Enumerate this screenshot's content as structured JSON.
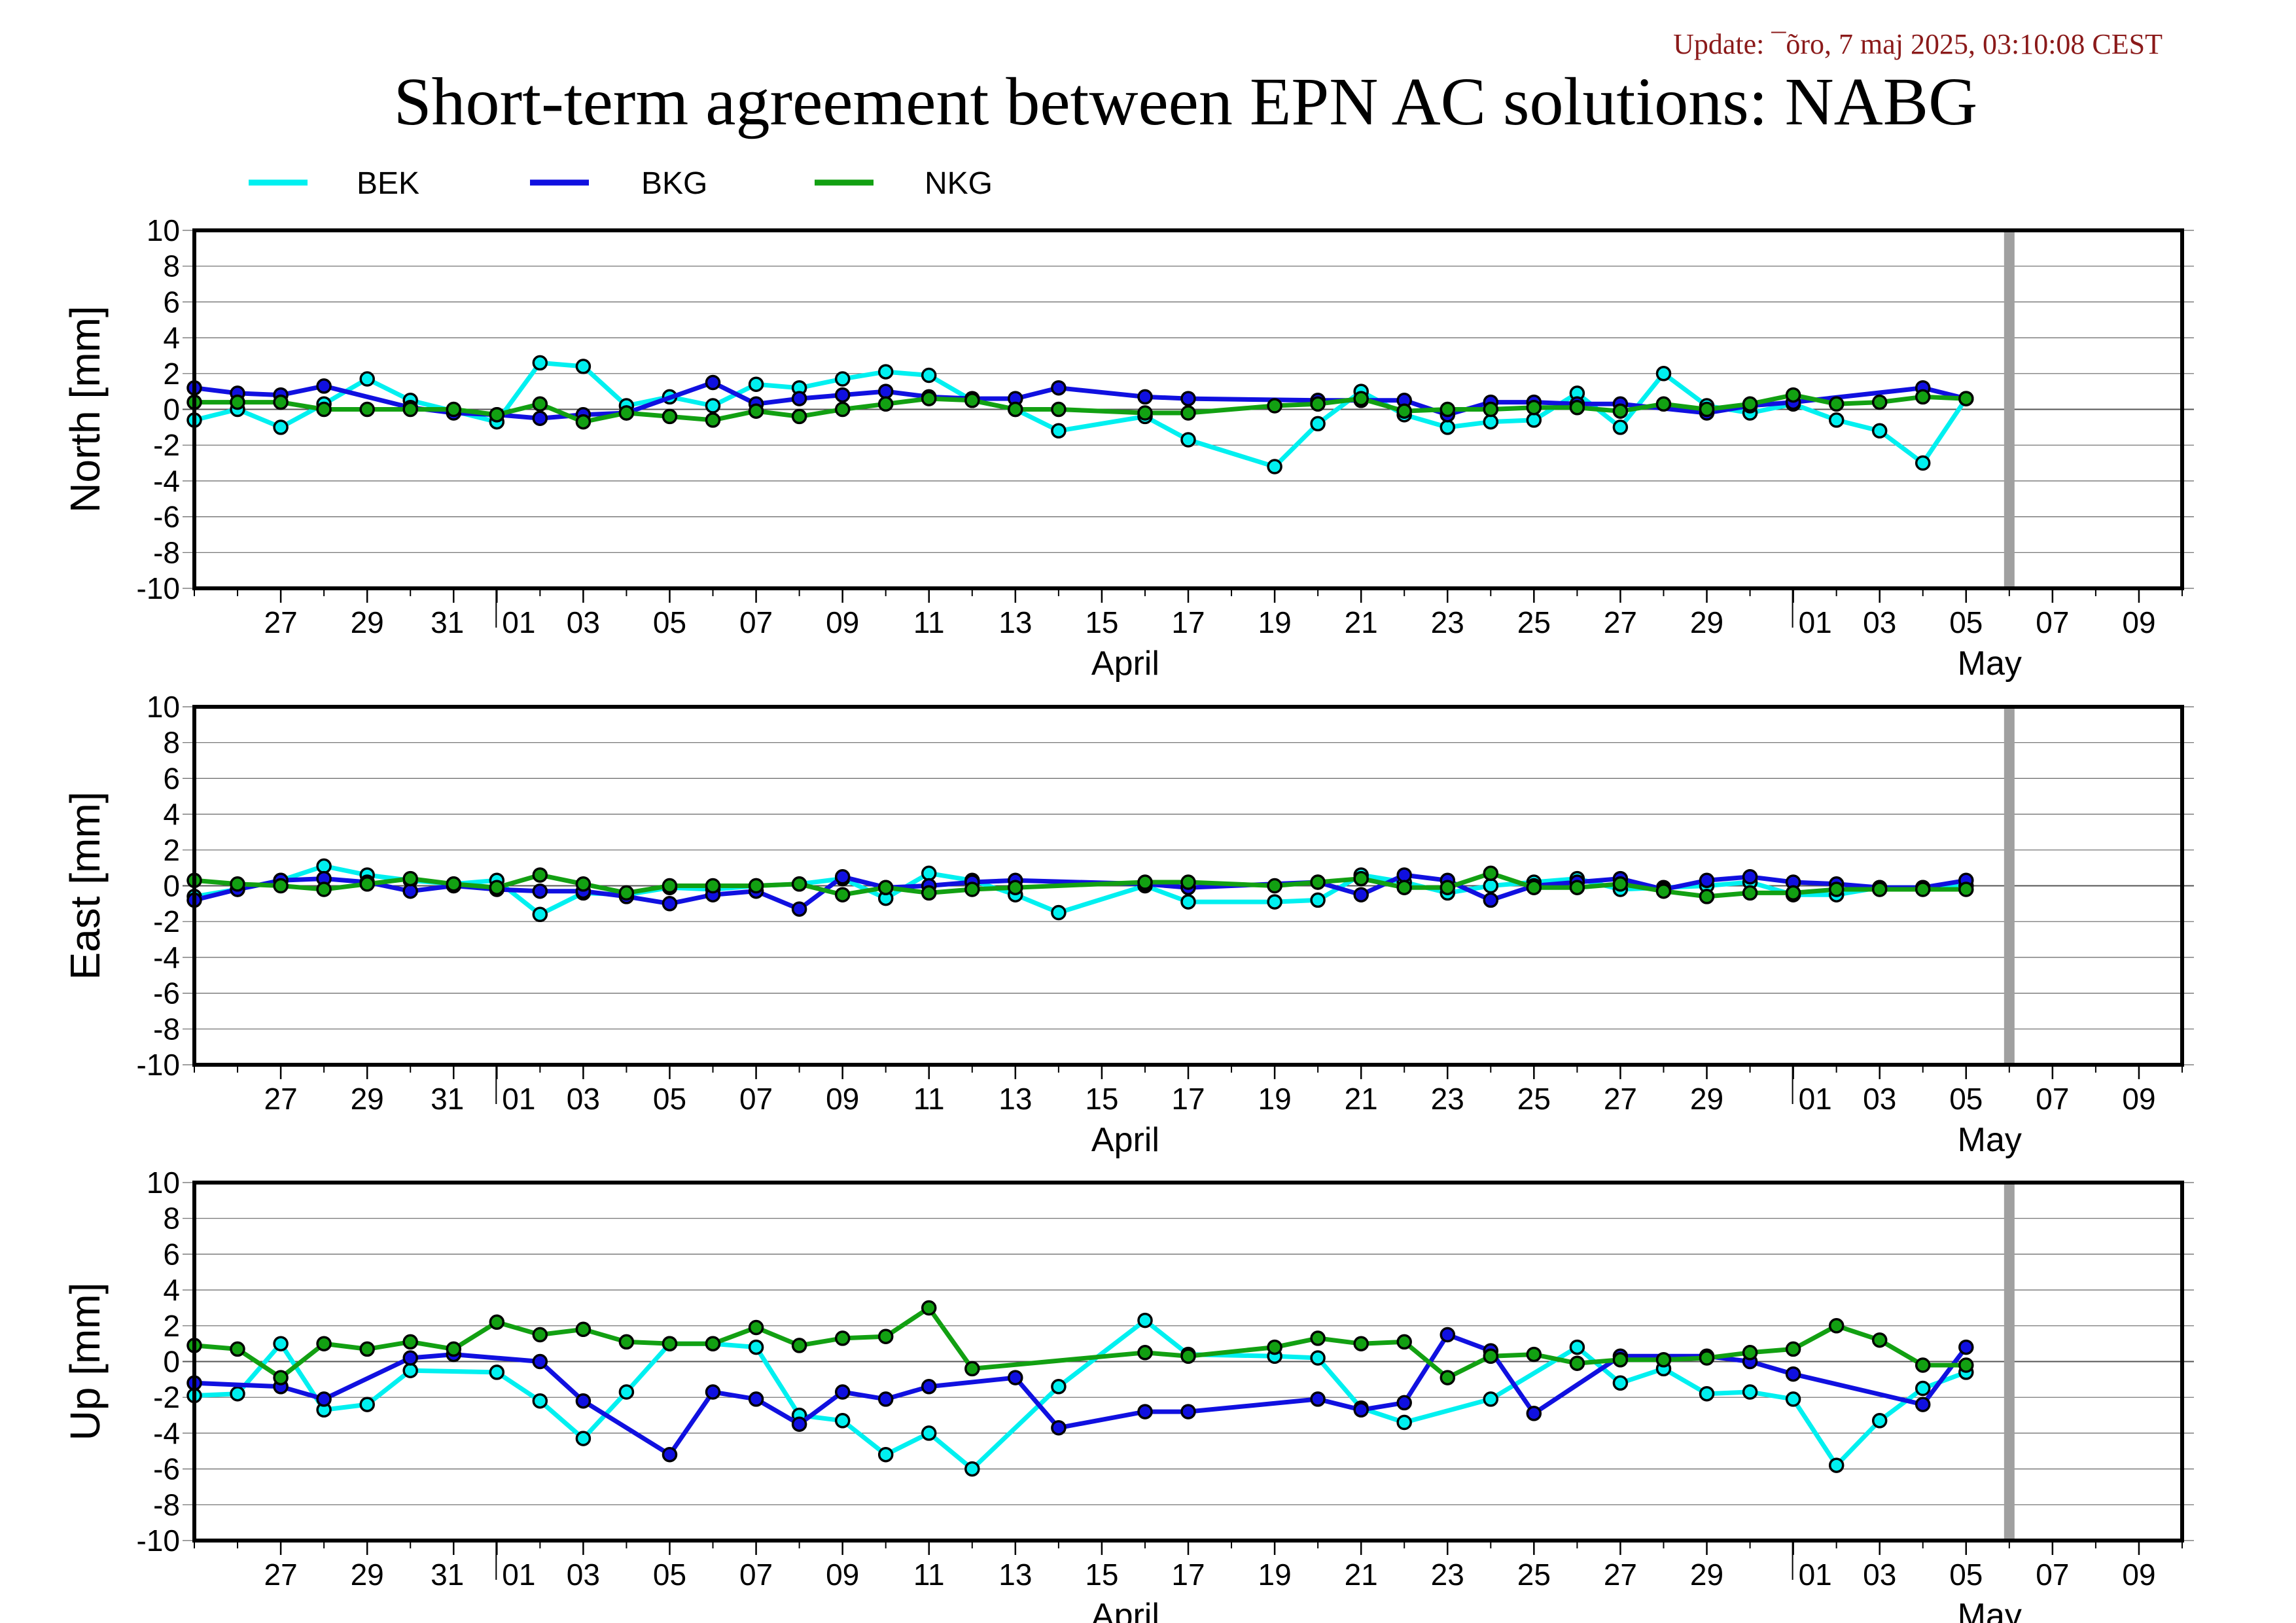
{
  "update_text": "Update: ¯õro, 7 maj 2025, 03:10:08 CEST",
  "title": "Short-term agreement between EPN AC solutions: NABG",
  "colors": {
    "BEK": "#00f0f0",
    "BKG": "#1010e0",
    "NKG": "#12a012",
    "grey_bar": "#a0a0a0"
  },
  "chart_data": [
    {
      "type": "line",
      "ylabel": "North [mm]",
      "ylim": [
        -10,
        10
      ],
      "yticks": [
        -10,
        -8,
        -6,
        -4,
        -2,
        0,
        2,
        4,
        6,
        8,
        10
      ],
      "xlim": [
        "2025-03-25",
        "2025-05-10"
      ],
      "xticks": [
        "27",
        "29",
        "31",
        "01",
        "03",
        "05",
        "07",
        "09",
        "11",
        "13",
        "15",
        "17",
        "19",
        "21",
        "23",
        "25",
        "27",
        "29",
        "01",
        "03",
        "05",
        "07",
        "09"
      ],
      "months": [
        "April",
        "May"
      ],
      "series": [
        {
          "name": "BEK",
          "x": [
            "2025-03-25",
            "2025-03-26",
            "2025-03-27",
            "2025-03-28",
            "2025-03-29",
            "2025-03-30",
            "2025-03-31",
            "2025-04-01",
            "2025-04-02",
            "2025-04-03",
            "2025-04-04",
            "2025-04-05",
            "2025-04-06",
            "2025-04-07",
            "2025-04-08",
            "2025-04-09",
            "2025-04-10",
            "2025-04-11",
            "2025-04-12",
            "2025-04-13",
            "2025-04-14",
            "2025-04-16",
            "2025-04-17",
            "2025-04-19",
            "2025-04-20",
            "2025-04-21",
            "2025-04-22",
            "2025-04-23",
            "2025-04-24",
            "2025-04-25",
            "2025-04-26",
            "2025-04-27",
            "2025-04-28",
            "2025-04-29",
            "2025-04-30",
            "2025-05-01",
            "2025-05-02",
            "2025-05-03",
            "2025-05-04",
            "2025-05-05"
          ],
          "y": [
            -0.6,
            0.0,
            -1.0,
            0.3,
            1.7,
            0.5,
            -0.1,
            -0.7,
            2.6,
            2.4,
            0.2,
            0.7,
            0.2,
            1.4,
            1.2,
            1.7,
            2.1,
            1.9,
            0.5,
            0.0,
            -1.2,
            -0.4,
            -1.7,
            -3.2,
            -0.8,
            1.0,
            -0.3,
            -1.0,
            -0.7,
            -0.6,
            0.9,
            -1.0,
            2.0,
            0.2,
            -0.2,
            0.3,
            -0.6,
            -1.2,
            -3.0,
            0.6
          ]
        },
        {
          "name": "BKG",
          "x": [
            "2025-03-25",
            "2025-03-26",
            "2025-03-27",
            "2025-03-28",
            "2025-03-30",
            "2025-03-31",
            "2025-04-01",
            "2025-04-02",
            "2025-04-03",
            "2025-04-04",
            "2025-04-06",
            "2025-04-07",
            "2025-04-08",
            "2025-04-09",
            "2025-04-10",
            "2025-04-11",
            "2025-04-12",
            "2025-04-13",
            "2025-04-14",
            "2025-04-16",
            "2025-04-17",
            "2025-04-20",
            "2025-04-21",
            "2025-04-22",
            "2025-04-23",
            "2025-04-24",
            "2025-04-25",
            "2025-04-26",
            "2025-04-27",
            "2025-04-29",
            "2025-04-30",
            "2025-05-01",
            "2025-05-04",
            "2025-05-05"
          ],
          "y": [
            1.2,
            0.9,
            0.8,
            1.3,
            0.1,
            -0.2,
            -0.3,
            -0.5,
            -0.3,
            -0.2,
            1.5,
            0.3,
            0.6,
            0.8,
            1.0,
            0.7,
            0.6,
            0.6,
            1.2,
            0.7,
            0.6,
            0.5,
            0.5,
            0.5,
            -0.3,
            0.4,
            0.4,
            0.3,
            0.3,
            -0.2,
            0.2,
            0.4,
            1.2,
            0.6
          ]
        },
        {
          "name": "NKG",
          "x": [
            "2025-03-25",
            "2025-03-26",
            "2025-03-27",
            "2025-03-28",
            "2025-03-29",
            "2025-03-30",
            "2025-03-31",
            "2025-04-01",
            "2025-04-02",
            "2025-04-03",
            "2025-04-04",
            "2025-04-05",
            "2025-04-06",
            "2025-04-07",
            "2025-04-08",
            "2025-04-09",
            "2025-04-10",
            "2025-04-11",
            "2025-04-12",
            "2025-04-13",
            "2025-04-14",
            "2025-04-16",
            "2025-04-17",
            "2025-04-19",
            "2025-04-20",
            "2025-04-21",
            "2025-04-22",
            "2025-04-23",
            "2025-04-24",
            "2025-04-25",
            "2025-04-26",
            "2025-04-27",
            "2025-04-28",
            "2025-04-29",
            "2025-04-30",
            "2025-05-01",
            "2025-05-02",
            "2025-05-03",
            "2025-05-04",
            "2025-05-05"
          ],
          "y": [
            0.4,
            0.4,
            0.4,
            0.0,
            0.0,
            0.0,
            0.0,
            -0.3,
            0.3,
            -0.7,
            -0.2,
            -0.4,
            -0.6,
            -0.1,
            -0.4,
            0.0,
            0.3,
            0.6,
            0.5,
            0.0,
            0.0,
            -0.2,
            -0.2,
            0.2,
            0.3,
            0.6,
            -0.1,
            0.0,
            0.0,
            0.1,
            0.1,
            -0.1,
            0.3,
            0.0,
            0.3,
            0.8,
            0.3,
            0.4,
            0.7,
            0.6
          ]
        }
      ]
    },
    {
      "type": "line",
      "ylabel": "East [mm]",
      "ylim": [
        -10,
        10
      ],
      "yticks": [
        -10,
        -8,
        -6,
        -4,
        -2,
        0,
        2,
        4,
        6,
        8,
        10
      ],
      "xlim": [
        "2025-03-25",
        "2025-05-10"
      ],
      "xticks": [
        "27",
        "29",
        "31",
        "01",
        "03",
        "05",
        "07",
        "09",
        "11",
        "13",
        "15",
        "17",
        "19",
        "21",
        "23",
        "25",
        "27",
        "29",
        "01",
        "03",
        "05",
        "07",
        "09"
      ],
      "months": [
        "April",
        "May"
      ],
      "series": [
        {
          "name": "BEK",
          "x": [
            "2025-03-25",
            "2025-03-26",
            "2025-03-27",
            "2025-03-28",
            "2025-03-29",
            "2025-03-30",
            "2025-03-31",
            "2025-04-01",
            "2025-04-02",
            "2025-04-03",
            "2025-04-04",
            "2025-04-05",
            "2025-04-06",
            "2025-04-07",
            "2025-04-08",
            "2025-04-09",
            "2025-04-10",
            "2025-04-11",
            "2025-04-12",
            "2025-04-13",
            "2025-04-14",
            "2025-04-16",
            "2025-04-17",
            "2025-04-19",
            "2025-04-20",
            "2025-04-21",
            "2025-04-22",
            "2025-04-23",
            "2025-04-24",
            "2025-04-25",
            "2025-04-26",
            "2025-04-27",
            "2025-04-28",
            "2025-04-29",
            "2025-04-30",
            "2025-05-01",
            "2025-05-02",
            "2025-05-03",
            "2025-05-04",
            "2025-05-05"
          ],
          "y": [
            -0.6,
            -0.2,
            0.3,
            1.1,
            0.6,
            0.3,
            0.1,
            0.3,
            -1.6,
            -0.4,
            -0.5,
            -0.1,
            -0.2,
            0.0,
            0.1,
            0.4,
            -0.7,
            0.7,
            0.3,
            -0.5,
            -1.5,
            0.0,
            -0.9,
            -0.9,
            -0.8,
            0.6,
            0.2,
            -0.4,
            0.0,
            0.2,
            0.4,
            -0.2,
            -0.1,
            0.0,
            0.2,
            -0.5,
            -0.5,
            -0.1,
            -0.1,
            0.0
          ]
        },
        {
          "name": "BKG",
          "x": [
            "2025-03-25",
            "2025-03-26",
            "2025-03-27",
            "2025-03-28",
            "2025-03-29",
            "2025-03-30",
            "2025-03-31",
            "2025-04-01",
            "2025-04-02",
            "2025-04-03",
            "2025-04-04",
            "2025-04-05",
            "2025-04-06",
            "2025-04-07",
            "2025-04-08",
            "2025-04-09",
            "2025-04-10",
            "2025-04-11",
            "2025-04-12",
            "2025-04-13",
            "2025-04-16",
            "2025-04-17",
            "2025-04-20",
            "2025-04-21",
            "2025-04-22",
            "2025-04-23",
            "2025-04-24",
            "2025-04-25",
            "2025-04-26",
            "2025-04-27",
            "2025-04-28",
            "2025-04-29",
            "2025-04-30",
            "2025-05-01",
            "2025-05-02",
            "2025-05-03",
            "2025-05-04",
            "2025-05-05"
          ],
          "y": [
            -0.8,
            -0.2,
            0.3,
            0.4,
            0.2,
            -0.3,
            0.0,
            -0.2,
            -0.3,
            -0.3,
            -0.6,
            -1.0,
            -0.5,
            -0.3,
            -1.3,
            0.5,
            -0.1,
            0.0,
            0.2,
            0.3,
            0.1,
            -0.1,
            0.2,
            -0.5,
            0.6,
            0.3,
            -0.8,
            0.0,
            0.2,
            0.4,
            -0.2,
            0.3,
            0.5,
            0.2,
            0.1,
            -0.1,
            -0.1,
            0.3
          ]
        },
        {
          "name": "NKG",
          "x": [
            "2025-03-25",
            "2025-03-26",
            "2025-03-27",
            "2025-03-28",
            "2025-03-29",
            "2025-03-30",
            "2025-03-31",
            "2025-04-01",
            "2025-04-02",
            "2025-04-03",
            "2025-04-04",
            "2025-04-05",
            "2025-04-06",
            "2025-04-07",
            "2025-04-08",
            "2025-04-09",
            "2025-04-10",
            "2025-04-11",
            "2025-04-12",
            "2025-04-13",
            "2025-04-16",
            "2025-04-17",
            "2025-04-19",
            "2025-04-20",
            "2025-04-21",
            "2025-04-22",
            "2025-04-23",
            "2025-04-24",
            "2025-04-25",
            "2025-04-26",
            "2025-04-27",
            "2025-04-28",
            "2025-04-29",
            "2025-04-30",
            "2025-05-01",
            "2025-05-02",
            "2025-05-03",
            "2025-05-04",
            "2025-05-05"
          ],
          "y": [
            0.3,
            0.1,
            0.0,
            -0.2,
            0.1,
            0.4,
            0.1,
            -0.1,
            0.6,
            0.1,
            -0.4,
            0.0,
            0.0,
            0.0,
            0.1,
            -0.5,
            -0.1,
            -0.4,
            -0.2,
            -0.1,
            0.2,
            0.2,
            0.0,
            0.2,
            0.4,
            -0.1,
            -0.1,
            0.7,
            -0.1,
            -0.1,
            0.1,
            -0.3,
            -0.6,
            -0.4,
            -0.4,
            -0.2,
            -0.2,
            -0.2,
            -0.2
          ]
        }
      ]
    },
    {
      "type": "line",
      "ylabel": "Up [mm]",
      "ylim": [
        -10,
        10
      ],
      "yticks": [
        -10,
        -8,
        -6,
        -4,
        -2,
        0,
        2,
        4,
        6,
        8,
        10
      ],
      "xlim": [
        "2025-03-25",
        "2025-05-10"
      ],
      "xticks": [
        "27",
        "29",
        "31",
        "01",
        "03",
        "05",
        "07",
        "09",
        "11",
        "13",
        "15",
        "17",
        "19",
        "21",
        "23",
        "25",
        "27",
        "29",
        "01",
        "03",
        "05",
        "07",
        "09"
      ],
      "months": [
        "April",
        "May"
      ],
      "series": [
        {
          "name": "BEK",
          "x": [
            "2025-03-25",
            "2025-03-26",
            "2025-03-27",
            "2025-03-28",
            "2025-03-29",
            "2025-03-30",
            "2025-04-01",
            "2025-04-02",
            "2025-04-03",
            "2025-04-04",
            "2025-04-05",
            "2025-04-06",
            "2025-04-07",
            "2025-04-08",
            "2025-04-09",
            "2025-04-10",
            "2025-04-11",
            "2025-04-12",
            "2025-04-14",
            "2025-04-16",
            "2025-04-17",
            "2025-04-19",
            "2025-04-20",
            "2025-04-21",
            "2025-04-22",
            "2025-04-24",
            "2025-04-26",
            "2025-04-27",
            "2025-04-28",
            "2025-04-29",
            "2025-04-30",
            "2025-05-01",
            "2025-05-02",
            "2025-05-03",
            "2025-05-04",
            "2025-05-05"
          ],
          "y": [
            -1.9,
            -1.8,
            1.0,
            -2.7,
            -2.4,
            -0.5,
            -0.6,
            -2.2,
            -4.3,
            -1.7,
            1.0,
            1.0,
            0.8,
            -3.0,
            -3.3,
            -5.2,
            -4.0,
            -6.0,
            -1.4,
            2.3,
            0.4,
            0.3,
            0.2,
            -2.6,
            -3.4,
            -2.1,
            0.8,
            -1.2,
            -0.4,
            -1.8,
            -1.7,
            -2.1,
            -5.8,
            -3.3,
            -1.5,
            -0.6
          ]
        },
        {
          "name": "BKG",
          "x": [
            "2025-03-25",
            "2025-03-27",
            "2025-03-28",
            "2025-03-30",
            "2025-03-31",
            "2025-04-02",
            "2025-04-03",
            "2025-04-05",
            "2025-04-06",
            "2025-04-07",
            "2025-04-08",
            "2025-04-09",
            "2025-04-10",
            "2025-04-11",
            "2025-04-13",
            "2025-04-14",
            "2025-04-16",
            "2025-04-17",
            "2025-04-20",
            "2025-04-21",
            "2025-04-22",
            "2025-04-23",
            "2025-04-24",
            "2025-04-25",
            "2025-04-27",
            "2025-04-29",
            "2025-04-30",
            "2025-05-01",
            "2025-05-04",
            "2025-05-05"
          ],
          "y": [
            -1.2,
            -1.4,
            -2.1,
            0.2,
            0.4,
            0.0,
            -2.2,
            -5.2,
            -1.7,
            -2.1,
            -3.5,
            -1.7,
            -2.1,
            -1.4,
            -0.9,
            -3.7,
            -2.8,
            -2.8,
            -2.1,
            -2.7,
            -2.3,
            1.5,
            0.6,
            -2.9,
            0.3,
            0.3,
            0.0,
            -0.7,
            -2.4,
            0.8
          ]
        },
        {
          "name": "NKG",
          "x": [
            "2025-03-25",
            "2025-03-26",
            "2025-03-27",
            "2025-03-28",
            "2025-03-29",
            "2025-03-30",
            "2025-03-31",
            "2025-04-01",
            "2025-04-02",
            "2025-04-03",
            "2025-04-04",
            "2025-04-05",
            "2025-04-06",
            "2025-04-07",
            "2025-04-08",
            "2025-04-09",
            "2025-04-10",
            "2025-04-11",
            "2025-04-12",
            "2025-04-16",
            "2025-04-17",
            "2025-04-19",
            "2025-04-20",
            "2025-04-21",
            "2025-04-22",
            "2025-04-23",
            "2025-04-24",
            "2025-04-25",
            "2025-04-26",
            "2025-04-27",
            "2025-04-28",
            "2025-04-29",
            "2025-04-30",
            "2025-05-01",
            "2025-05-02",
            "2025-05-03",
            "2025-05-04",
            "2025-05-05"
          ],
          "y": [
            0.9,
            0.7,
            -0.9,
            1.0,
            0.7,
            1.1,
            0.7,
            2.2,
            1.5,
            1.8,
            1.1,
            1.0,
            1.0,
            1.9,
            0.9,
            1.3,
            1.4,
            3.0,
            -0.4,
            0.5,
            0.3,
            0.8,
            1.3,
            1.0,
            1.1,
            -0.9,
            0.3,
            0.4,
            -0.1,
            0.1,
            0.1,
            0.2,
            0.5,
            0.7,
            2.0,
            1.2,
            -0.2,
            -0.2
          ]
        }
      ]
    }
  ],
  "legend": [
    {
      "name": "BEK"
    },
    {
      "name": "BKG"
    },
    {
      "name": "NKG"
    }
  ]
}
